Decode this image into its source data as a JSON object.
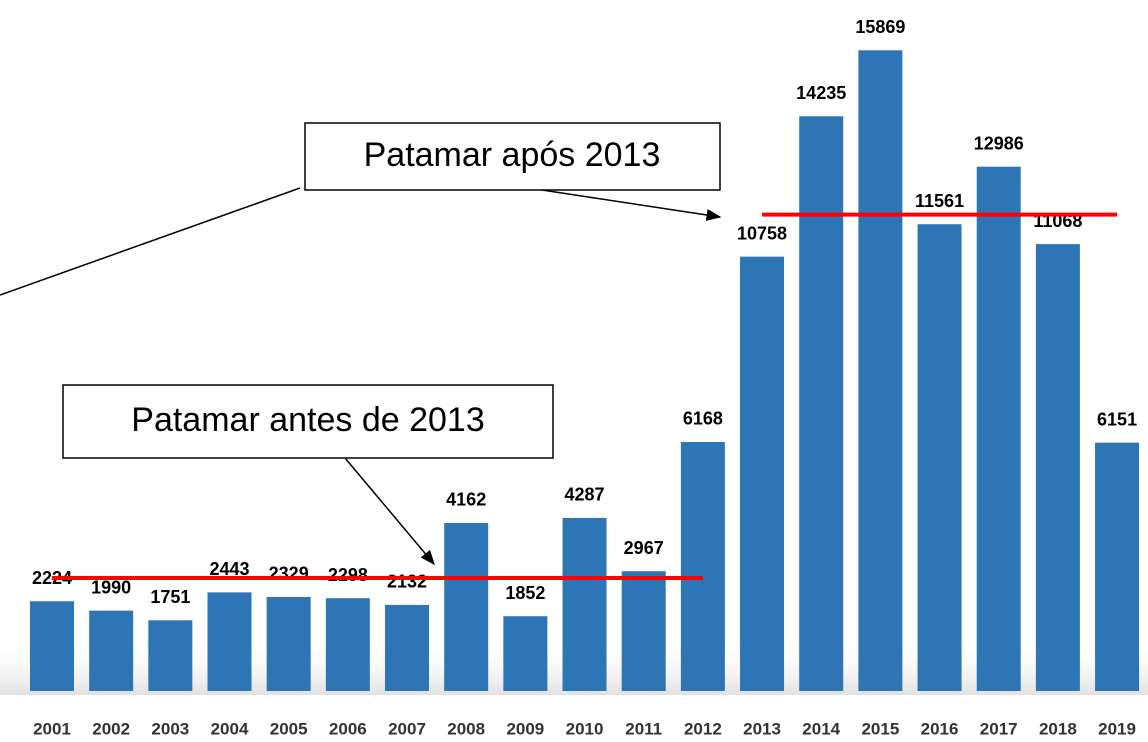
{
  "chart_data": {
    "type": "bar",
    "categories": [
      "2001",
      "2002",
      "2003",
      "2004",
      "2005",
      "2006",
      "2007",
      "2008",
      "2009",
      "2010",
      "2011",
      "2012",
      "2013",
      "2014",
      "2015",
      "2016",
      "2017",
      "2018",
      "2019"
    ],
    "values": [
      2224,
      1990,
      1751,
      2443,
      2329,
      2298,
      2132,
      4162,
      1852,
      4287,
      2967,
      6168,
      10758,
      14235,
      15869,
      11561,
      12986,
      11068,
      6151
    ],
    "color": "#2e75b6",
    "ylim": [
      0,
      16000
    ],
    "reference_lines": [
      {
        "label": "Patamar antes de 2013",
        "value": 2800,
        "from": "2001",
        "to": "2012",
        "color": "#ff0000"
      },
      {
        "label": "Patamar após 2013",
        "value": 11800,
        "from": "2013",
        "to": "2019",
        "color": "#ff0000"
      }
    ]
  }
}
